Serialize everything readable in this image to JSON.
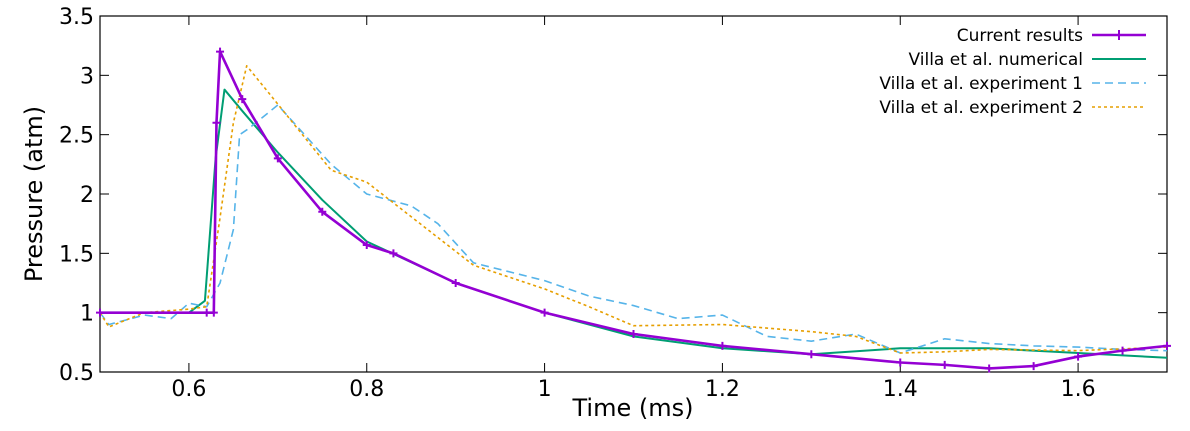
{
  "chart_data": {
    "type": "line",
    "title": "",
    "xlabel": "Time (ms)",
    "ylabel": "Pressure (atm)",
    "xlim": [
      0.5,
      1.7
    ],
    "ylim": [
      0.5,
      3.5
    ],
    "xticks": [
      0.6,
      0.8,
      1,
      1.2,
      1.4,
      1.6
    ],
    "xtick_labels": [
      "0.6",
      "0.8",
      "1",
      "1.2",
      "1.4",
      "1.6"
    ],
    "yticks": [
      0.5,
      1,
      1.5,
      2,
      2.5,
      3,
      3.5
    ],
    "ytick_labels": [
      "0.5",
      "1",
      "1.5",
      "2",
      "2.5",
      "3",
      "3.5"
    ],
    "grid": false,
    "legend_position": "top-right",
    "series": [
      {
        "name": "Current results",
        "color": "#9400D3",
        "style": "solid-plus",
        "x": [
          0.5,
          0.62,
          0.628,
          0.631,
          0.635,
          0.66,
          0.7,
          0.75,
          0.8,
          0.83,
          0.9,
          1.0,
          1.1,
          1.2,
          1.3,
          1.4,
          1.45,
          1.5,
          1.55,
          1.6,
          1.65,
          1.7
        ],
        "y": [
          1.0,
          1.0,
          1.0,
          2.6,
          3.2,
          2.8,
          2.3,
          1.85,
          1.57,
          1.5,
          1.25,
          1.0,
          0.82,
          0.72,
          0.65,
          0.58,
          0.56,
          0.53,
          0.55,
          0.63,
          0.68,
          0.72
        ]
      },
      {
        "name": "Villa et al. numerical",
        "color": "#009E73",
        "style": "solid",
        "x": [
          0.5,
          0.6,
          0.618,
          0.63,
          0.64,
          0.66,
          0.7,
          0.75,
          0.8,
          0.9,
          1.0,
          1.1,
          1.2,
          1.3,
          1.4,
          1.5,
          1.6,
          1.7
        ],
        "y": [
          1.0,
          1.0,
          1.1,
          2.3,
          2.88,
          2.7,
          2.35,
          1.95,
          1.6,
          1.25,
          1.0,
          0.8,
          0.7,
          0.65,
          0.7,
          0.7,
          0.66,
          0.62
        ]
      },
      {
        "name": "Villa et al. experiment 1",
        "color": "#56B4E9",
        "style": "dashed",
        "x": [
          0.5,
          0.51,
          0.55,
          0.58,
          0.6,
          0.62,
          0.635,
          0.65,
          0.657,
          0.667,
          0.7,
          0.76,
          0.8,
          0.85,
          0.88,
          0.92,
          1.0,
          1.05,
          1.1,
          1.15,
          1.2,
          1.25,
          1.3,
          1.35,
          1.4,
          1.45,
          1.5,
          1.55,
          1.6,
          1.65,
          1.7
        ],
        "y": [
          1.0,
          0.9,
          0.98,
          0.95,
          1.08,
          1.05,
          1.25,
          1.7,
          2.5,
          2.55,
          2.75,
          2.25,
          2.0,
          1.9,
          1.75,
          1.42,
          1.27,
          1.14,
          1.06,
          0.95,
          0.98,
          0.8,
          0.76,
          0.82,
          0.66,
          0.78,
          0.74,
          0.72,
          0.71,
          0.69,
          0.68
        ]
      },
      {
        "name": "Villa et al. experiment 2",
        "color": "#E69F00",
        "style": "dotted",
        "x": [
          0.5,
          0.51,
          0.55,
          0.6,
          0.62,
          0.635,
          0.65,
          0.665,
          0.69,
          0.76,
          0.8,
          0.86,
          0.92,
          1.0,
          1.05,
          1.1,
          1.2,
          1.3,
          1.35,
          1.4,
          1.45,
          1.5,
          1.6,
          1.7
        ],
        "y": [
          1.0,
          0.88,
          1.0,
          1.03,
          1.05,
          1.8,
          2.6,
          3.08,
          2.85,
          2.2,
          2.1,
          1.75,
          1.4,
          1.2,
          1.05,
          0.89,
          0.9,
          0.84,
          0.8,
          0.66,
          0.67,
          0.69,
          0.68,
          0.71
        ]
      }
    ]
  }
}
